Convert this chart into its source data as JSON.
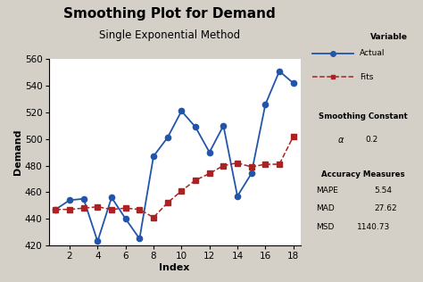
{
  "title": "Smoothing Plot for Demand",
  "subtitle": "Single Exponential Method",
  "xlabel": "Index",
  "ylabel": "Demand",
  "bg_color": "#d4d0c8",
  "plot_bg_color": "#ffffff",
  "actual_x": [
    1,
    2,
    3,
    4,
    5,
    6,
    7,
    8,
    9,
    10,
    11,
    12,
    13,
    14,
    15,
    16,
    17,
    18
  ],
  "actual_y": [
    447,
    454,
    455,
    423,
    456,
    440,
    425,
    487,
    501,
    521,
    509,
    490,
    510,
    457,
    474,
    526,
    551,
    542
  ],
  "fits_x": [
    1,
    2,
    3,
    4,
    5,
    6,
    7,
    8,
    9,
    10,
    11,
    12,
    13,
    14,
    15,
    16,
    17,
    18
  ],
  "fits_y": [
    447,
    447,
    448,
    449,
    447,
    448,
    447,
    441,
    452,
    461,
    469,
    474,
    480,
    482,
    479,
    481,
    481,
    502
  ],
  "actual_color": "#2255aa",
  "fits_color": "#aa2222",
  "ylim": [
    420,
    560
  ],
  "yticks": [
    420,
    440,
    460,
    480,
    500,
    520,
    540,
    560
  ],
  "xticks": [
    2,
    4,
    6,
    8,
    10,
    12,
    14,
    16,
    18
  ],
  "smoothing_alpha": "0.2",
  "mape": "5.54",
  "mad": "27.62",
  "msd": "1140.73",
  "title_fontsize": 11,
  "subtitle_fontsize": 8.5,
  "label_fontsize": 8,
  "tick_fontsize": 7.5
}
